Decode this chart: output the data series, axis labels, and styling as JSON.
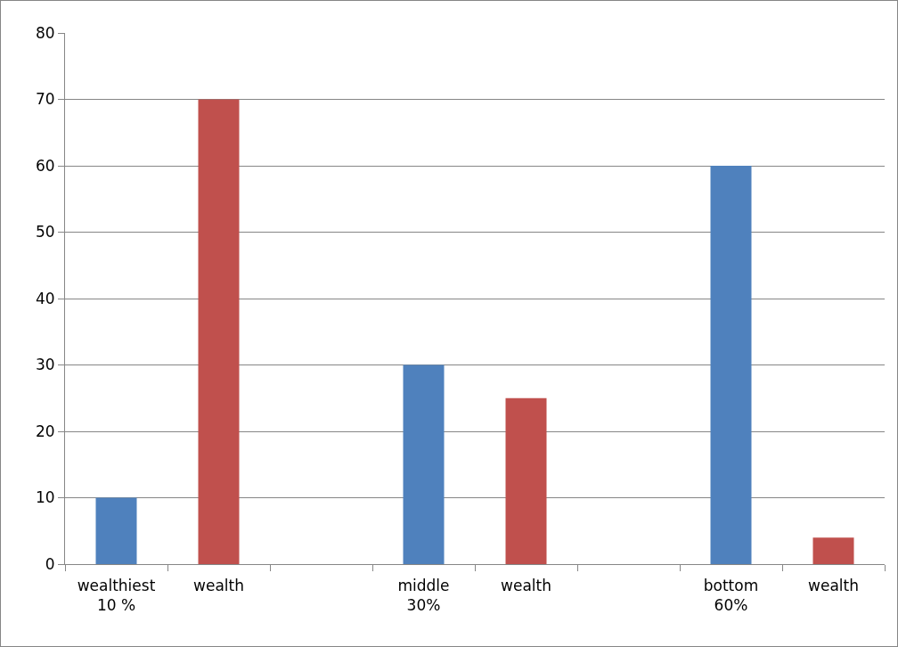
{
  "chart_data": {
    "type": "bar",
    "categories": [
      "wealthiest\n10 %",
      "wealth",
      null,
      "middle\n30%",
      "wealth",
      null,
      "bottom\n60%",
      "wealth"
    ],
    "values": [
      10,
      70,
      null,
      30,
      25,
      null,
      60,
      4
    ],
    "colors": [
      "#4f81bd",
      "#c0504d",
      null,
      "#4f81bd",
      "#c0504d",
      null,
      "#4f81bd",
      "#c0504d"
    ],
    "ylim": [
      0,
      80
    ],
    "yticks": [
      0,
      10,
      20,
      30,
      40,
      50,
      60,
      70,
      80
    ],
    "grid": "y"
  }
}
